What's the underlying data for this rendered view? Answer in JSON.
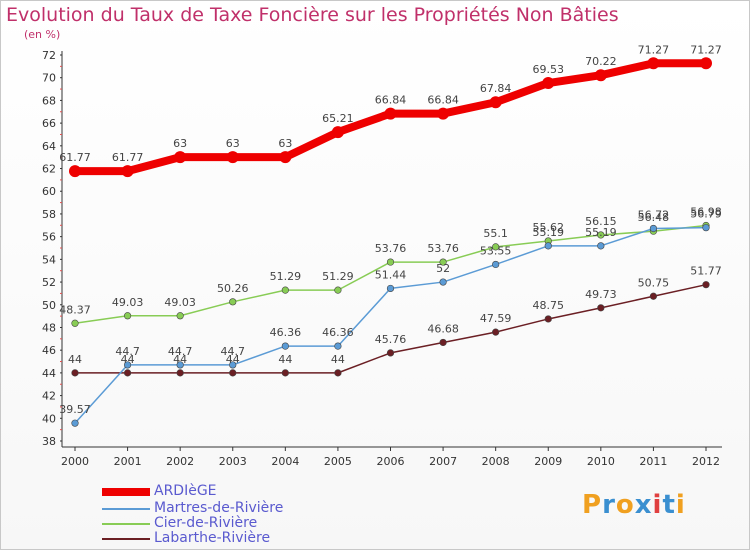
{
  "chart_data": {
    "type": "line",
    "title": "Evolution du Taux de Taxe Foncière sur les Propriétés Non Bâties",
    "unit_label": "(en %)",
    "x": [
      "2000",
      "2001",
      "2002",
      "2003",
      "2004",
      "2005",
      "2006",
      "2007",
      "2008",
      "2009",
      "2010",
      "2011",
      "2012"
    ],
    "ylim": [
      38,
      72
    ],
    "yticks": [
      38,
      40,
      42,
      44,
      46,
      48,
      50,
      52,
      54,
      56,
      58,
      60,
      62,
      64,
      66,
      68,
      70,
      72
    ],
    "grid": false,
    "legend_position": "bottom-left",
    "series": [
      {
        "name": "ARDIèGE",
        "color": "#ee0000",
        "values": [
          61.77,
          61.77,
          63,
          63,
          63,
          65.21,
          66.84,
          66.84,
          67.84,
          69.53,
          70.22,
          71.27,
          71.27
        ],
        "labels": [
          "61.77",
          "61.77",
          "63",
          "63",
          "63",
          "65.21",
          "66.84",
          "66.84",
          "67.84",
          "69.53",
          "70.22",
          "71.27",
          "71.27"
        ]
      },
      {
        "name": "Martres-de-Rivière",
        "color": "#5b9bd5",
        "values": [
          39.57,
          44.7,
          44.7,
          44.7,
          46.36,
          46.36,
          51.44,
          52,
          53.55,
          55.19,
          55.19,
          56.72,
          56.79
        ],
        "labels": [
          "39.57",
          "44.7",
          "44.7",
          "44.7",
          "46.36",
          "46.36",
          "51.44",
          "52",
          "53.55",
          "55.19",
          "55.19",
          "56.72",
          "56.79"
        ]
      },
      {
        "name": "Cier-de-Rivière",
        "color": "#88cc55",
        "values": [
          48.37,
          49.03,
          49.03,
          50.26,
          51.29,
          51.29,
          53.76,
          53.76,
          55.1,
          55.62,
          56.15,
          56.48,
          56.98
        ],
        "labels": [
          "48.37",
          "49.03",
          "49.03",
          "50.26",
          "51.29",
          "51.29",
          "53.76",
          "53.76",
          "55.1",
          "55.62",
          "56.15",
          "56.48",
          "56.98"
        ]
      },
      {
        "name": "Labarthe-Rivière",
        "color": "#6b1f24",
        "values": [
          44,
          44,
          44,
          44,
          44,
          44,
          45.76,
          46.68,
          47.59,
          48.75,
          49.73,
          50.75,
          51.77
        ],
        "labels": [
          "44",
          "44",
          "44",
          "44",
          "44",
          "44",
          "45.76",
          "46.68",
          "47.59",
          "48.75",
          "49.73",
          "50.75",
          "51.77"
        ]
      }
    ]
  },
  "logo": {
    "letters": [
      "P",
      "r",
      "o",
      "x",
      "i",
      "t",
      "i"
    ],
    "colors": [
      "#f0a020",
      "#3a8fd0",
      "#f0a020",
      "#3a8fd0",
      "#e04040",
      "#3a8fd0",
      "#f0a020"
    ]
  }
}
